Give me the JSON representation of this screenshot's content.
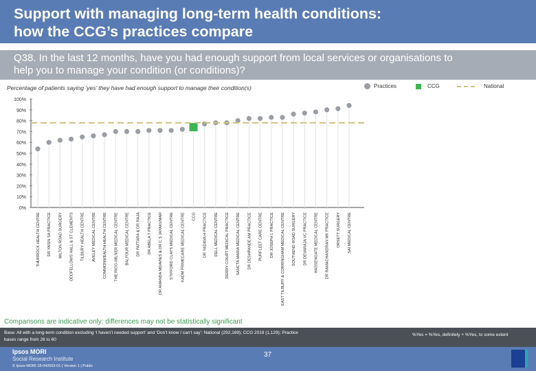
{
  "header": {
    "title_line1": "Support with managing long-term health conditions:",
    "title_line2": "how the CCG’s practices compare",
    "question_line1": "Q38. In the last 12 months, have you had enough support from local services or organisations to",
    "question_line2": "help you to manage your condition (or conditions)?"
  },
  "chart_data": {
    "type": "scatter",
    "subtitle": "Percentage of patients saying ‘yes’ they have had enough support to manage their condition(s)",
    "ylim": [
      0,
      100
    ],
    "y_ticks": [
      "0%",
      "10%",
      "20%",
      "30%",
      "40%",
      "50%",
      "60%",
      "70%",
      "80%",
      "90%",
      "100%"
    ],
    "legend": {
      "practices": "Practices",
      "ccg": "CCG",
      "national": "National",
      "placement": "top-right"
    },
    "colors": {
      "practices": "#9a9ea4",
      "ccg": "#3cb454",
      "national": "#c9c27e"
    },
    "national": 78,
    "categories": [
      "THURROCK HEALTH CENTRE",
      "DR YASIN SA PRACTICE",
      "MILTON ROAD SURGERY",
      "ODDFELLOWS HALL & ST CLEMENTS",
      "TILBURY HEALTH CENTRE",
      "AVELEY MEDICAL CENTRE",
      "COMMONWEALTH HEALTH CENTRE",
      "THE RIGG-MILNER MEDICAL CENTRE",
      "BALFOUR MEDICAL CENTRE",
      "DR PATTARA & DR RAJA",
      "DR ABELA T PRACTICE",
      "DR AMANDA MDAVIES & DR C S JAYAKUMAR",
      "STIFFORD CLAYS MEDICAL CENTRE",
      "KADM PRIMECARE MEDICAL CENTRE",
      "CCG",
      "DR YADAVA H PRACTICE",
      "DELL MEDICAL CENTRE",
      "DERRY COURT MEDICAL PRACTICE",
      "SANCTA MARIA MEDICAL CENTRE",
      "DR DESHPANDE AM PRACTICE",
      "PURFLEET CARE CENTRE",
      "DR JOSEPH L PRACTICE",
      "EAST TILBURY & CORRINGHAM MEDICAL CENTRE",
      "SOUTHEND ROAD SURGERY",
      "DR DEVARAJA VC PRACTICE",
      "HASSENGATE MEDICAL CENTRE",
      "DR RAMACHANDRAN MK PRACTICE",
      "ORSETT SURGERY",
      "SAI MEDICAL CENTRE"
    ],
    "values": [
      54,
      60,
      62,
      63,
      65,
      66,
      67,
      70,
      70,
      70,
      71,
      71,
      71,
      72,
      74,
      77,
      78,
      78,
      80,
      82,
      82,
      83,
      83,
      86,
      87,
      88,
      90,
      91,
      94
    ],
    "ccg_index": 14
  },
  "notes": {
    "comparison": "Comparisons are indicative only: differences may not be statistically significant",
    "base_line1": "Base: All with a long-term condition excluding ‘I haven’t needed support’ and ‘Don’t know / can’t say’: National (292,169); CCG 2019 (1,129); Practice",
    "base_line2": "bases range from 26 to 60",
    "yes_def": "%Yes = %Yes, definitely + %Yes, to some extent"
  },
  "footer": {
    "org1": "Ipsos MORI",
    "org2": "Social Research Institute",
    "copyright": "© Ipsos MORI     18-042653-01 | Version 1 | Public",
    "page": "37"
  }
}
